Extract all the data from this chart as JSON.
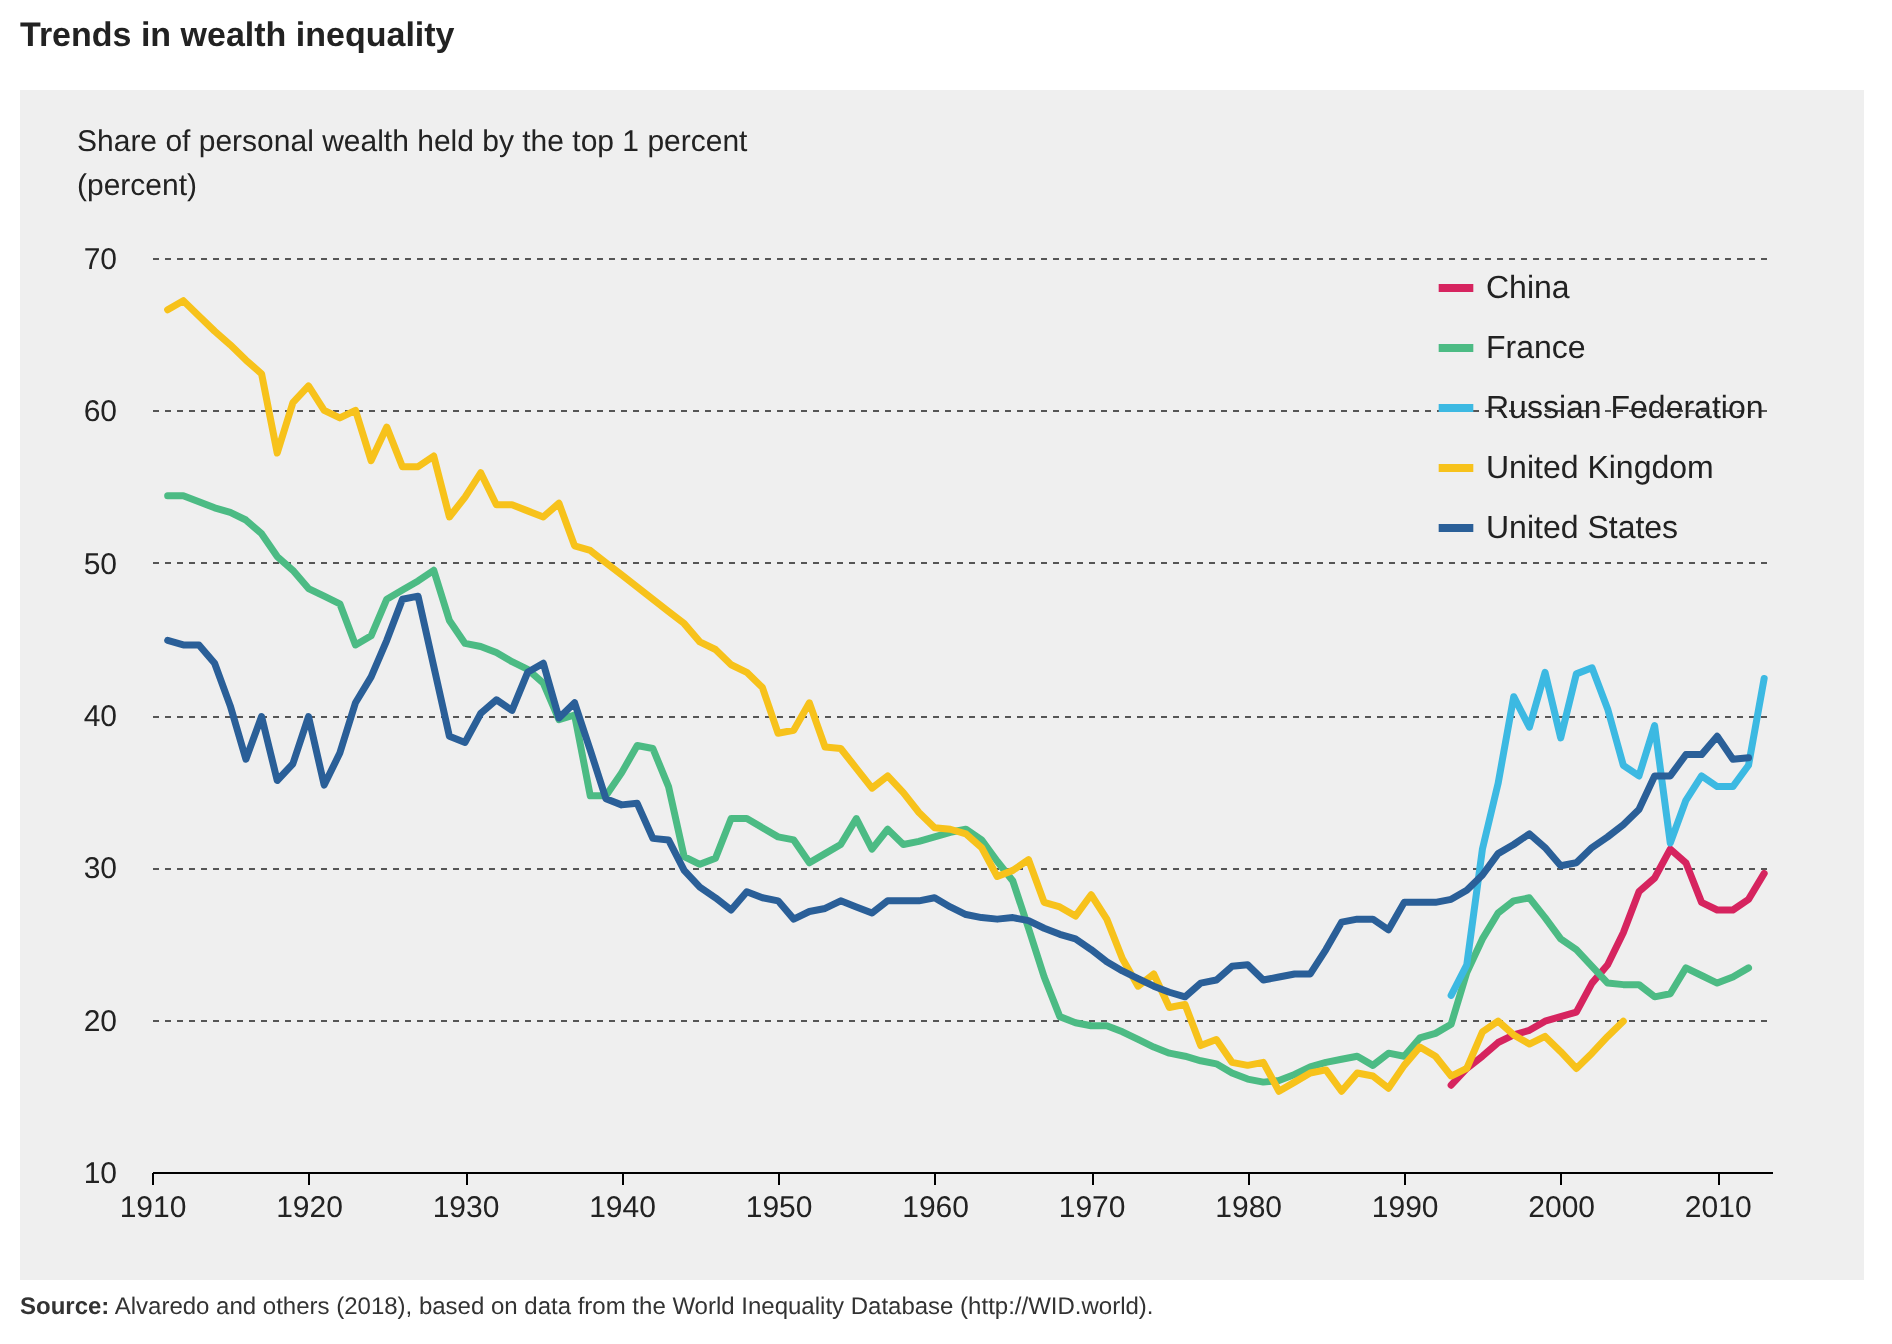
{
  "chart_data": {
    "type": "line",
    "title": "Trends in wealth inequality",
    "ylabel": "Share of personal wealth held by the top 1 percent\n(percent)",
    "annotations": [
      "Source: Alvaredo and others (2018), based on data from the World Inequality Database (http://WID.world)."
    ],
    "x": [
      1911,
      1912,
      1913,
      1914,
      1915,
      1916,
      1917,
      1918,
      1919,
      1920,
      1921,
      1922,
      1923,
      1924,
      1925,
      1926,
      1927,
      1928,
      1929,
      1930,
      1931,
      1932,
      1933,
      1934,
      1935,
      1936,
      1937,
      1938,
      1939,
      1940,
      1941,
      1942,
      1943,
      1944,
      1945,
      1946,
      1947,
      1948,
      1949,
      1950,
      1951,
      1952,
      1953,
      1954,
      1955,
      1956,
      1957,
      1958,
      1959,
      1960,
      1961,
      1962,
      1963,
      1964,
      1965,
      1966,
      1967,
      1968,
      1969,
      1970,
      1971,
      1972,
      1973,
      1974,
      1975,
      1976,
      1977,
      1978,
      1979,
      1980,
      1981,
      1982,
      1983,
      1984,
      1985,
      1986,
      1987,
      1988,
      1989,
      1990,
      1991,
      1992,
      1993,
      1994,
      1995,
      1996,
      1997,
      1998,
      1999,
      2000,
      2001,
      2002,
      2003,
      2004,
      2005,
      2006,
      2007,
      2008,
      2009,
      2010,
      2011,
      2012,
      2013
    ],
    "series": [
      {
        "name": "China",
        "color": "#d6245f",
        "values": [
          null,
          null,
          null,
          null,
          null,
          null,
          null,
          null,
          null,
          null,
          null,
          null,
          null,
          null,
          null,
          null,
          null,
          null,
          null,
          null,
          null,
          null,
          null,
          null,
          null,
          null,
          null,
          null,
          null,
          null,
          null,
          null,
          null,
          null,
          null,
          null,
          null,
          null,
          null,
          null,
          null,
          null,
          null,
          null,
          null,
          null,
          null,
          null,
          null,
          null,
          null,
          null,
          null,
          null,
          null,
          null,
          null,
          null,
          null,
          null,
          null,
          null,
          null,
          null,
          null,
          null,
          null,
          null,
          null,
          null,
          null,
          null,
          null,
          null,
          null,
          null,
          null,
          null,
          null,
          null,
          null,
          null,
          15.7,
          16.8,
          17.6,
          18.5,
          19.0,
          19.3,
          19.9,
          20.2,
          20.5,
          22.4,
          23.6,
          25.7,
          28.4,
          29.3,
          31.2,
          30.3,
          27.7,
          27.2,
          27.2,
          27.9,
          29.6
        ]
      },
      {
        "name": "France",
        "color": "#4cbb84",
        "values": [
          54.4,
          54.4,
          54.0,
          53.6,
          53.3,
          52.8,
          51.9,
          50.4,
          49.5,
          48.3,
          47.8,
          47.3,
          44.6,
          45.2,
          47.6,
          48.2,
          48.8,
          49.5,
          46.2,
          44.7,
          44.5,
          44.1,
          43.5,
          43.0,
          42.1,
          39.7,
          40.0,
          34.7,
          34.7,
          36.2,
          38.0,
          37.8,
          35.3,
          30.7,
          30.2,
          30.6,
          33.2,
          33.2,
          32.6,
          32.0,
          31.8,
          30.3,
          30.9,
          31.5,
          33.2,
          31.2,
          32.5,
          31.5,
          31.7,
          32.0,
          32.3,
          32.5,
          31.8,
          30.4,
          29.1,
          26.0,
          22.8,
          20.2,
          19.8,
          19.6,
          19.6,
          19.2,
          18.7,
          18.2,
          17.8,
          17.6,
          17.3,
          17.1,
          16.5,
          16.1,
          15.9,
          16.0,
          16.4,
          16.9,
          17.2,
          17.4,
          17.6,
          17.0,
          17.8,
          17.6,
          18.8,
          19.1,
          19.7,
          23.1,
          25.3,
          27.0,
          27.8,
          28.0,
          26.7,
          25.3,
          24.6,
          23.5,
          22.4,
          22.3,
          22.3,
          21.5,
          21.7,
          23.4,
          22.9,
          22.4,
          22.8,
          23.4,
          null
        ]
      },
      {
        "name": "Russian Federation",
        "color": "#3cb9e2",
        "values": [
          null,
          null,
          null,
          null,
          null,
          null,
          null,
          null,
          null,
          null,
          null,
          null,
          null,
          null,
          null,
          null,
          null,
          null,
          null,
          null,
          null,
          null,
          null,
          null,
          null,
          null,
          null,
          null,
          null,
          null,
          null,
          null,
          null,
          null,
          null,
          null,
          null,
          null,
          null,
          null,
          null,
          null,
          null,
          null,
          null,
          null,
          null,
          null,
          null,
          null,
          null,
          null,
          null,
          null,
          null,
          null,
          null,
          null,
          null,
          null,
          null,
          null,
          null,
          null,
          null,
          null,
          null,
          null,
          null,
          null,
          null,
          null,
          null,
          null,
          null,
          null,
          null,
          null,
          null,
          null,
          null,
          null,
          21.6,
          23.6,
          31.2,
          35.5,
          41.2,
          39.2,
          42.8,
          38.5,
          42.7,
          43.1,
          40.4,
          36.7,
          36.0,
          39.3,
          31.6,
          34.4,
          36.0,
          35.3,
          35.3,
          36.7,
          42.4
        ]
      },
      {
        "name": "United Kingdom",
        "color": "#f7c21b",
        "values": [
          66.6,
          67.2,
          66.2,
          65.2,
          64.3,
          63.3,
          62.4,
          57.2,
          60.5,
          61.6,
          60.0,
          59.5,
          60.0,
          56.7,
          58.9,
          56.3,
          56.3,
          57.0,
          53.0,
          54.3,
          55.9,
          53.8,
          53.8,
          53.4,
          53.0,
          53.9,
          51.1,
          50.8,
          50.0,
          49.2,
          48.4,
          47.6,
          46.8,
          46.0,
          44.8,
          44.3,
          43.3,
          42.8,
          41.8,
          38.8,
          39.0,
          40.8,
          37.9,
          37.8,
          36.5,
          35.2,
          36.0,
          34.9,
          33.6,
          32.6,
          32.5,
          32.2,
          31.3,
          29.4,
          29.8,
          30.5,
          27.7,
          27.4,
          26.8,
          28.2,
          26.6,
          24.0,
          22.2,
          23.0,
          20.8,
          21.0,
          18.3,
          18.7,
          17.2,
          17.0,
          17.2,
          15.3,
          15.9,
          16.5,
          16.7,
          15.3,
          16.5,
          16.3,
          15.5,
          17.0,
          18.2,
          17.6,
          16.3,
          16.8,
          19.2,
          19.9,
          19.0,
          18.4,
          18.9,
          17.9,
          16.8,
          17.8,
          18.9,
          19.9,
          null,
          null,
          null,
          null,
          null,
          null,
          null,
          null,
          null
        ]
      },
      {
        "name": "United States",
        "color": "#2a5f98",
        "values": [
          44.9,
          44.6,
          44.6,
          43.4,
          40.6,
          37.1,
          39.9,
          35.7,
          36.8,
          39.9,
          35.4,
          37.5,
          40.8,
          42.5,
          44.9,
          47.6,
          47.8,
          43.2,
          38.6,
          38.2,
          40.1,
          41.0,
          40.3,
          42.8,
          43.4,
          39.8,
          40.8,
          37.7,
          34.5,
          34.1,
          34.2,
          31.9,
          31.8,
          29.8,
          28.7,
          28.0,
          27.2,
          28.4,
          28.0,
          27.8,
          26.6,
          27.1,
          27.3,
          27.8,
          27.4,
          27.0,
          27.8,
          27.8,
          27.8,
          28.0,
          27.4,
          26.9,
          26.7,
          26.6,
          26.7,
          26.5,
          26.0,
          25.6,
          25.3,
          24.6,
          23.8,
          23.2,
          22.7,
          22.2,
          21.8,
          21.5,
          22.4,
          22.6,
          23.5,
          23.6,
          22.6,
          22.8,
          23.0,
          23.0,
          24.6,
          26.4,
          26.6,
          26.6,
          25.9,
          27.7,
          27.7,
          27.7,
          27.9,
          28.5,
          29.5,
          30.9,
          31.5,
          32.2,
          31.3,
          30.1,
          30.3,
          31.3,
          32.0,
          32.8,
          33.8,
          36.0,
          36.0,
          37.4,
          37.4,
          38.6,
          37.1,
          37.2,
          null
        ]
      }
    ],
    "xlim": [
      1910,
      2013.5
    ],
    "xticks": [
      1910,
      1920,
      1930,
      1940,
      1950,
      1960,
      1970,
      1980,
      1990,
      2000,
      2010
    ],
    "ylim": [
      10,
      70
    ],
    "yticks": [
      10,
      20,
      30,
      40,
      50,
      60,
      70
    ],
    "grid": "y",
    "legend": "top right"
  }
}
